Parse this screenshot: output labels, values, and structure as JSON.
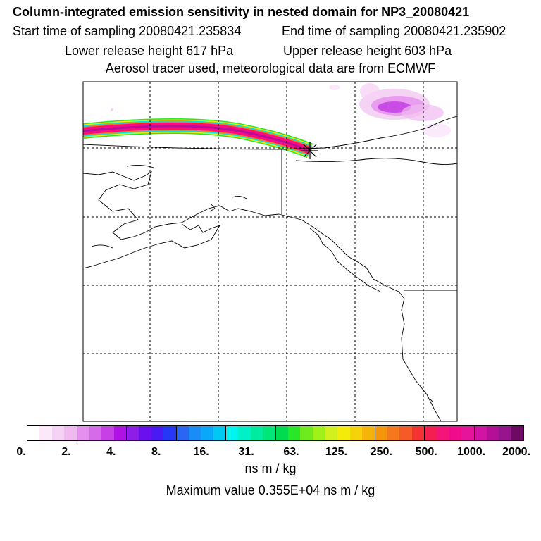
{
  "titles": {
    "line1": "Column-integrated emission sensitivity in nested domain for NP3_20080421",
    "start": "Start time of sampling 20080421.235834",
    "end": "End time of sampling 20080421.235902",
    "lower": "Lower release height  617 hPa",
    "upper": "Upper release height  603 hPa",
    "line4": "Aerosol tracer used, meteorological data are from ECMWF"
  },
  "colorbar": {
    "colors": [
      "#ffffff",
      "#fbe8fb",
      "#f6d3f6",
      "#f0b9f0",
      "#e590ee",
      "#d56be9",
      "#c640e6",
      "#b012e6",
      "#8d1ee8",
      "#6a10f0",
      "#4a1af5",
      "#2438f5",
      "#2a66f2",
      "#1a8cf5",
      "#0aa8f8",
      "#00c8f5",
      "#00f5ee",
      "#00f0c8",
      "#00eba0",
      "#00e678",
      "#00dc50",
      "#28e628",
      "#6eeb1e",
      "#a0f01a",
      "#d2f01e",
      "#f5eb0a",
      "#f5d20a",
      "#f5b40a",
      "#f5960a",
      "#f5781e",
      "#f55a28",
      "#f53232",
      "#f51e50",
      "#f51478",
      "#f00a8c",
      "#e6149b",
      "#d214a5",
      "#b40f96",
      "#96148c",
      "#6e0a64"
    ],
    "labels": [
      "0.",
      "2.",
      "4.",
      "8.",
      "16.",
      "31.",
      "63.",
      "125.",
      "250.",
      "500.",
      "1000.",
      "2000."
    ],
    "units": "ns m / kg"
  },
  "maximum": "Maximum value  0.355E+04 ns m / kg",
  "colors": {
    "plume_core": "#ff0a82",
    "plume_edge_cyan": "#00e6e6",
    "plume_edge_green": "#28e628",
    "plume_edge_yellow": "#f5eb0a",
    "sensitivity_purple": "#c840e6",
    "frame": "#000000"
  }
}
